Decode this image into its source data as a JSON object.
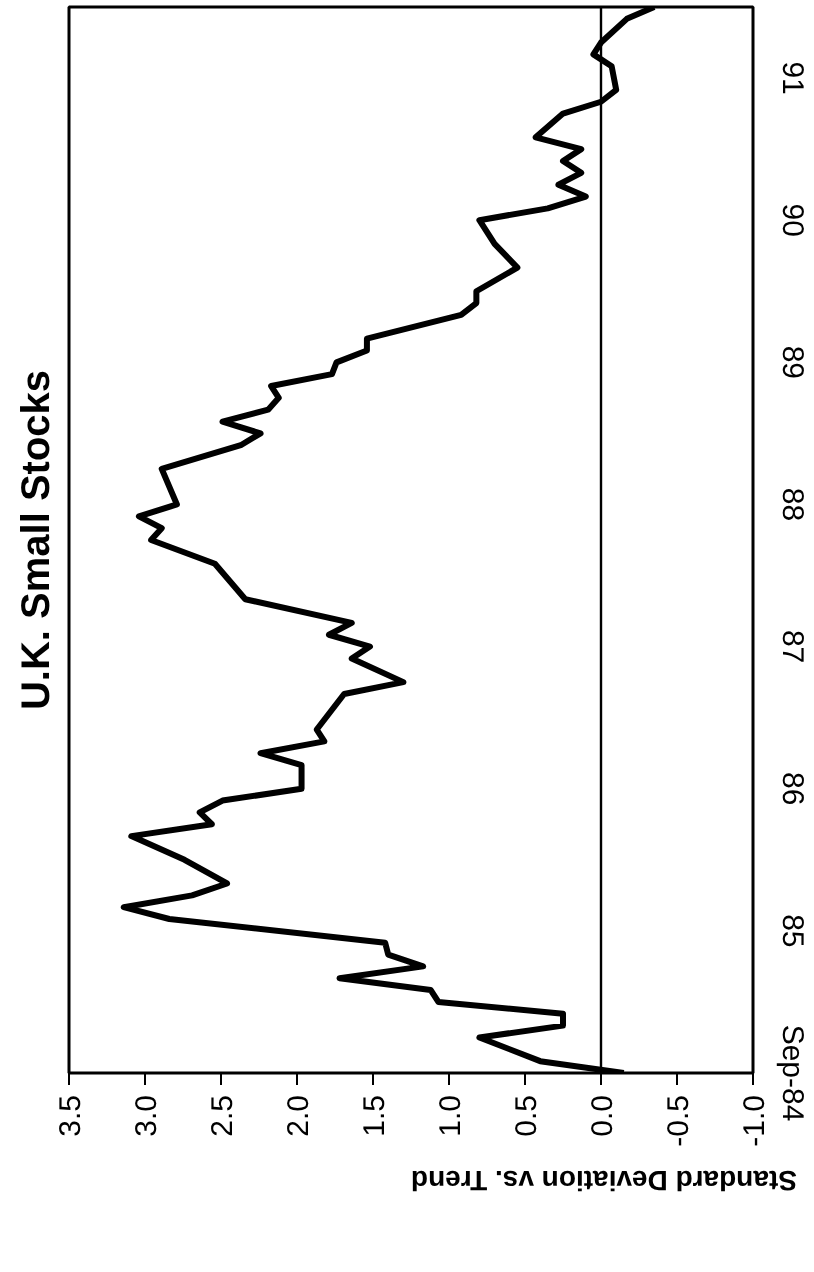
{
  "chart_data": {
    "type": "line",
    "title": "U.K. Small Stocks",
    "xlabel": "Standard Deviation vs. Trend",
    "orientation": "horizontal",
    "x": [
      "1984-09",
      "1984-10",
      "1984-12",
      "1985-01",
      "1985-02",
      "1985-03",
      "1985-04",
      "1985-05",
      "1985-06",
      "1985-07",
      "1985-08",
      "1985-10",
      "1985-11",
      "1985-12",
      "1986-01",
      "1986-03",
      "1986-05",
      "1986-06",
      "1986-07",
      "1986-08",
      "1986-09",
      "1986-11",
      "1986-12",
      "1987-01",
      "1987-02",
      "1987-05",
      "1987-06",
      "1987-08",
      "1987-09",
      "1987-10",
      "1987-11",
      "1988-01",
      "1988-04",
      "1988-06",
      "1988-07",
      "1988-08",
      "1988-09",
      "1988-12",
      "1989-02",
      "1989-03",
      "1989-04",
      "1989-05",
      "1989-06",
      "1989-07",
      "1989-08",
      "1989-09",
      "1989-10",
      "1989-11",
      "1990-01",
      "1990-02",
      "1990-03",
      "1990-05",
      "1990-07",
      "1990-09",
      "1990-10",
      "1990-11",
      "1990-12",
      "1991-01",
      "1991-02",
      "1991-03",
      "1991-04",
      "1991-06",
      "1991-07",
      "1991-08",
      "1991-10",
      "1991-11",
      "1991-12",
      "1992-02",
      "1992-03"
    ],
    "series": [
      {
        "color": "#000000",
        "values": [
          -0.15,
          0.4,
          0.8,
          0.25,
          0.25,
          1.07,
          1.12,
          1.72,
          1.17,
          1.4,
          1.42,
          2.84,
          3.14,
          2.69,
          2.46,
          2.74,
          3.09,
          2.56,
          2.64,
          2.49,
          1.97,
          1.97,
          2.24,
          1.82,
          1.87,
          1.69,
          1.3,
          1.64,
          1.52,
          1.79,
          1.64,
          2.34,
          2.54,
          2.96,
          2.89,
          3.04,
          2.79,
          2.89,
          2.37,
          2.24,
          2.49,
          2.19,
          2.12,
          2.17,
          1.77,
          1.74,
          1.54,
          1.54,
          0.92,
          0.82,
          0.82,
          0.55,
          0.7,
          0.8,
          0.35,
          0.1,
          0.28,
          0.13,
          0.25,
          0.13,
          0.43,
          0.25,
          0.0,
          -0.1,
          -0.07,
          0.05,
          0.0,
          -0.17,
          -0.35
        ]
      }
    ],
    "xlim": [
      3.5,
      -1.0
    ],
    "xticks": [
      {
        "value": 3.5,
        "label": "3.5"
      },
      {
        "value": 3,
        "label": "3.0"
      },
      2.5,
      {
        "value": 2,
        "label": "2.0"
      },
      1.5,
      {
        "value": 1,
        "label": "1.0"
      },
      0.5,
      {
        "value": 0,
        "label": "0.0"
      },
      -0.5,
      {
        "value": -1,
        "label": "-1.0"
      }
    ],
    "ylim": [
      "1984-09",
      "1992-03"
    ],
    "yticks": [
      {
        "value": "1984-09",
        "label": "Sep-84"
      },
      {
        "value": "1985-09",
        "label": "85"
      },
      {
        "value": "1986-09",
        "label": "86"
      },
      {
        "value": "1987-09",
        "label": "87"
      },
      {
        "value": "1988-09",
        "label": "88"
      },
      {
        "value": "1989-09",
        "label": "89"
      },
      {
        "value": "1990-09",
        "label": "90"
      },
      {
        "value": "1991-09",
        "label": "91"
      }
    ],
    "ref_lines": [
      {
        "axis": "x",
        "value": 0,
        "color": "#000000"
      }
    ]
  }
}
